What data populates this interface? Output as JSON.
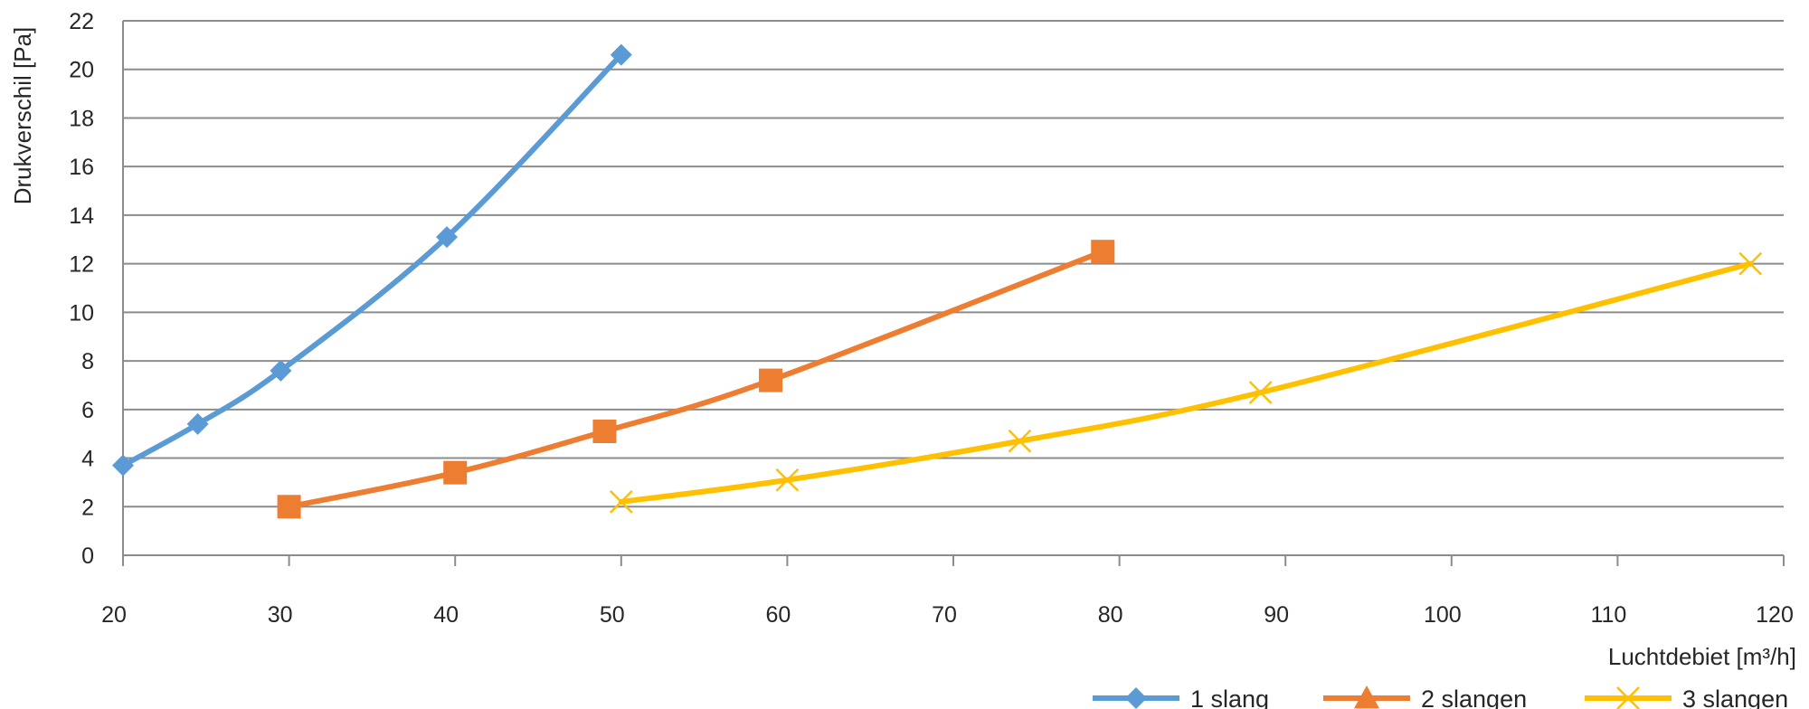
{
  "chart_data": {
    "type": "line",
    "xlabel": "Luchtdebiet [m³/h]",
    "ylabel": "Drukverschil [Pa]",
    "xlim": [
      20,
      120
    ],
    "ylim": [
      0,
      22
    ],
    "xticks": [
      20,
      30,
      40,
      50,
      60,
      70,
      80,
      90,
      100,
      110,
      120
    ],
    "yticks": [
      0,
      2,
      4,
      6,
      8,
      10,
      12,
      14,
      16,
      18,
      20,
      22
    ],
    "grid": "horizontal",
    "legend_position": "bottom-right",
    "series": [
      {
        "name": "1 slang",
        "color": "#5b9bd5",
        "marker": "diamond",
        "legend_marker": "diamond",
        "x": [
          20,
          24.5,
          29.5,
          39.5,
          50
        ],
        "y": [
          3.7,
          5.4,
          7.6,
          13.1,
          20.6
        ]
      },
      {
        "name": "2 slangen",
        "color": "#ed7d31",
        "marker": "square",
        "legend_marker": "triangle",
        "x": [
          30,
          40,
          49,
          59,
          79
        ],
        "y": [
          2.0,
          3.4,
          5.1,
          7.2,
          12.5
        ]
      },
      {
        "name": "3 slangen",
        "color": "#ffc000",
        "marker": "x",
        "legend_marker": "x",
        "x": [
          50,
          60,
          74,
          88.5,
          118
        ],
        "y": [
          2.2,
          3.1,
          4.7,
          6.7,
          12.0
        ]
      }
    ]
  }
}
